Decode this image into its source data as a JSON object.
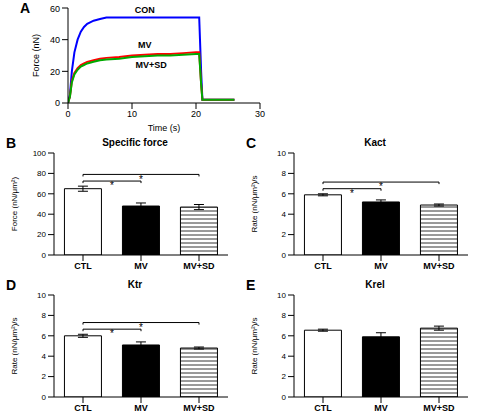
{
  "chart_data": [
    {
      "panel_label": "A",
      "type": "line",
      "x_label": "Time (s)",
      "y_label": "Force (nN)",
      "x": [
        0,
        0.3,
        0.6,
        1,
        1.5,
        2,
        2.5,
        3,
        4,
        5,
        6,
        8,
        10,
        12,
        14,
        16,
        18,
        20,
        20.5,
        20.8,
        21,
        21.3,
        22,
        24,
        26
      ],
      "series": [
        {
          "name": "CON",
          "color": "#0000ff",
          "values": [
            0,
            5,
            20,
            32,
            40,
            45,
            48,
            50,
            52,
            53,
            54,
            54,
            54,
            54,
            54,
            54,
            54,
            54,
            54,
            20,
            2,
            2,
            2,
            2,
            2
          ]
        },
        {
          "name": "MV",
          "color": "#ff0000",
          "values": [
            0,
            4,
            14,
            19,
            22,
            24,
            25,
            26,
            27,
            28,
            28.5,
            29,
            30,
            30.5,
            31,
            31,
            31.5,
            32,
            32,
            12,
            2,
            2,
            2,
            2,
            2
          ]
        },
        {
          "name": "MV+SD",
          "color": "#00aa00",
          "values": [
            0,
            4,
            13,
            18,
            21,
            23,
            24,
            25,
            26,
            27,
            27.5,
            28,
            29,
            29.5,
            30,
            30,
            30.5,
            31,
            31,
            12,
            2,
            2,
            2,
            2,
            2
          ]
        }
      ],
      "xlim": [
        0,
        30
      ],
      "xticks": [
        0,
        10,
        20,
        30
      ],
      "ylim": [
        0,
        60
      ],
      "yticks": [
        0,
        20,
        40,
        60
      ]
    },
    {
      "panel_label": "B",
      "type": "bar",
      "title": "Specific force",
      "y_label": "Force (nN/μm²)",
      "categories": [
        "CTL",
        "MV",
        "MV+SD"
      ],
      "values": [
        65,
        48,
        47
      ],
      "errors": [
        2.5,
        3,
        2.5
      ],
      "colors": [
        "#ffffff",
        "#000000",
        "#ffffff"
      ],
      "ylim": [
        0,
        100
      ],
      "yticks": [
        0,
        20,
        40,
        60,
        80,
        100
      ],
      "comparisons": [
        [
          "CTL",
          "MV"
        ],
        [
          "CTL",
          "MV+SD"
        ]
      ],
      "comparison_label": "*"
    },
    {
      "panel_label": "C",
      "type": "bar",
      "title": "Kact",
      "y_label": "Rate (nN/μm²)/s",
      "categories": [
        "CTL",
        "MV",
        "MV+SD"
      ],
      "values": [
        5.9,
        5.2,
        4.9
      ],
      "errors": [
        0.1,
        0.2,
        0.1
      ],
      "colors": [
        "#ffffff",
        "#000000",
        "#ffffff"
      ],
      "ylim": [
        0,
        10
      ],
      "yticks": [
        0,
        2,
        4,
        6,
        8,
        10
      ],
      "comparisons": [
        [
          "CTL",
          "MV"
        ],
        [
          "CTL",
          "MV+SD"
        ]
      ],
      "comparison_label": "*"
    },
    {
      "panel_label": "D",
      "type": "bar",
      "title": "Ktr",
      "y_label": "Rate (nN/μm²)/s",
      "categories": [
        "CTL",
        "MV",
        "MV+SD"
      ],
      "values": [
        6.0,
        5.1,
        4.8
      ],
      "errors": [
        0.15,
        0.3,
        0.1
      ],
      "colors": [
        "#ffffff",
        "#000000",
        "#ffffff"
      ],
      "ylim": [
        0,
        10
      ],
      "yticks": [
        0,
        2,
        4,
        6,
        8,
        10
      ],
      "comparisons": [
        [
          "CTL",
          "MV"
        ],
        [
          "CTL",
          "MV+SD"
        ]
      ],
      "comparison_label": "*"
    },
    {
      "panel_label": "E",
      "type": "bar",
      "title": "Krel",
      "y_label": "Rate (nN/μm²)/s",
      "categories": [
        "CTL",
        "MV",
        "MV+SD"
      ],
      "values": [
        6.55,
        5.9,
        6.75
      ],
      "errors": [
        0.1,
        0.4,
        0.2
      ],
      "colors": [
        "#ffffff",
        "#000000",
        "#ffffff"
      ],
      "ylim": [
        0,
        10
      ],
      "yticks": [
        0,
        2,
        4,
        6,
        8,
        10
      ]
    }
  ]
}
